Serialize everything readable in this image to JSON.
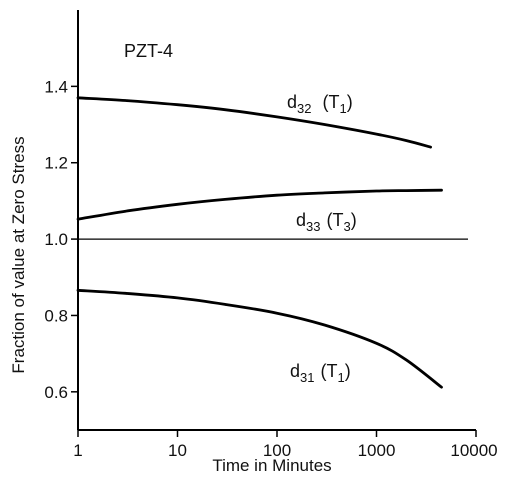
{
  "chart_data": {
    "type": "line",
    "xlabel": "Time in Minutes",
    "ylabel": "Fraction of value at Zero Stress",
    "x_scale": "log",
    "xlim": [
      1,
      10000
    ],
    "ylim": [
      0.5,
      1.6
    ],
    "x_ticks": [
      1,
      10,
      100,
      1000,
      10000
    ],
    "x_tick_labels": [
      "1",
      "10",
      "100",
      "1000",
      "10000"
    ],
    "y_ticks": [
      0.6,
      0.8,
      1.0,
      1.2,
      1.4
    ],
    "y_tick_labels": [
      "0.6",
      "0.8",
      "1.0",
      "1.2",
      "1.4"
    ],
    "grid": false,
    "legend": "none",
    "reference_line": {
      "y": 1.0
    },
    "annotations": {
      "material": "PZT-4"
    },
    "series": [
      {
        "name": "d32 (T1)",
        "label_main": "d",
        "label_sub": "32",
        "label_paren_main": "(T",
        "label_paren_sub": "1",
        "label_close": ")",
        "x": [
          1,
          3,
          10,
          30,
          100,
          300,
          1000,
          2000,
          3500
        ],
        "y": [
          1.37,
          1.363,
          1.352,
          1.339,
          1.32,
          1.3,
          1.275,
          1.258,
          1.241
        ]
      },
      {
        "name": "d33 (T3)",
        "label_main": "d",
        "label_sub": "33",
        "label_paren_main": "(T",
        "label_paren_sub": "3",
        "label_close": ")",
        "x": [
          1,
          3,
          10,
          30,
          100,
          300,
          1000,
          2000,
          4500
        ],
        "y": [
          1.052,
          1.073,
          1.091,
          1.104,
          1.115,
          1.121,
          1.126,
          1.127,
          1.128
        ]
      },
      {
        "name": "d31 (T1)",
        "label_main": "d",
        "label_sub": "31",
        "label_paren_main": "(T",
        "label_paren_sub": "1",
        "label_close": ")",
        "x": [
          1,
          3,
          10,
          30,
          100,
          300,
          1000,
          2000,
          4500
        ],
        "y": [
          0.866,
          0.858,
          0.846,
          0.829,
          0.806,
          0.775,
          0.727,
          0.683,
          0.612
        ]
      }
    ]
  }
}
